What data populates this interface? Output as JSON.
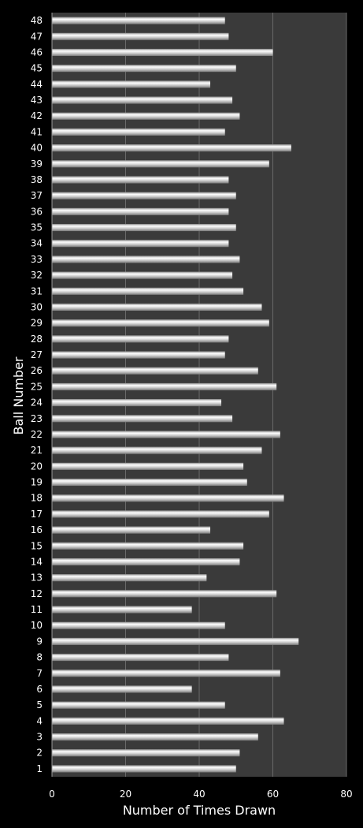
{
  "chart_data": {
    "type": "bar",
    "orientation": "horizontal",
    "title": "",
    "xlabel": "Number of Times Drawn",
    "ylabel": "Ball Number",
    "xlim": [
      0,
      80
    ],
    "x_ticks": [
      0,
      20,
      40,
      60,
      80
    ],
    "grid": "vertical",
    "legend": "none",
    "categories": [
      "1",
      "2",
      "3",
      "4",
      "5",
      "6",
      "7",
      "8",
      "9",
      "10",
      "11",
      "12",
      "13",
      "14",
      "15",
      "16",
      "17",
      "18",
      "19",
      "20",
      "21",
      "22",
      "23",
      "24",
      "25",
      "26",
      "27",
      "28",
      "29",
      "30",
      "31",
      "32",
      "33",
      "34",
      "35",
      "36",
      "37",
      "38",
      "39",
      "40",
      "41",
      "42",
      "43",
      "44",
      "45",
      "46",
      "47",
      "48"
    ],
    "values": [
      50,
      51,
      56,
      63,
      47,
      38,
      62,
      48,
      67,
      47,
      38,
      61,
      42,
      51,
      52,
      43,
      59,
      63,
      53,
      52,
      57,
      62,
      49,
      46,
      61,
      56,
      47,
      48,
      59,
      57,
      52,
      49,
      51,
      48,
      50,
      48,
      50,
      48,
      59,
      65,
      47,
      51,
      49,
      43,
      50,
      60,
      48,
      47
    ],
    "colors": {
      "background": "#000000",
      "plot_area": "#3a3a3a",
      "bar": "#d8d8d8",
      "grid": "#6a6a6a",
      "text": "#ffffff"
    }
  }
}
